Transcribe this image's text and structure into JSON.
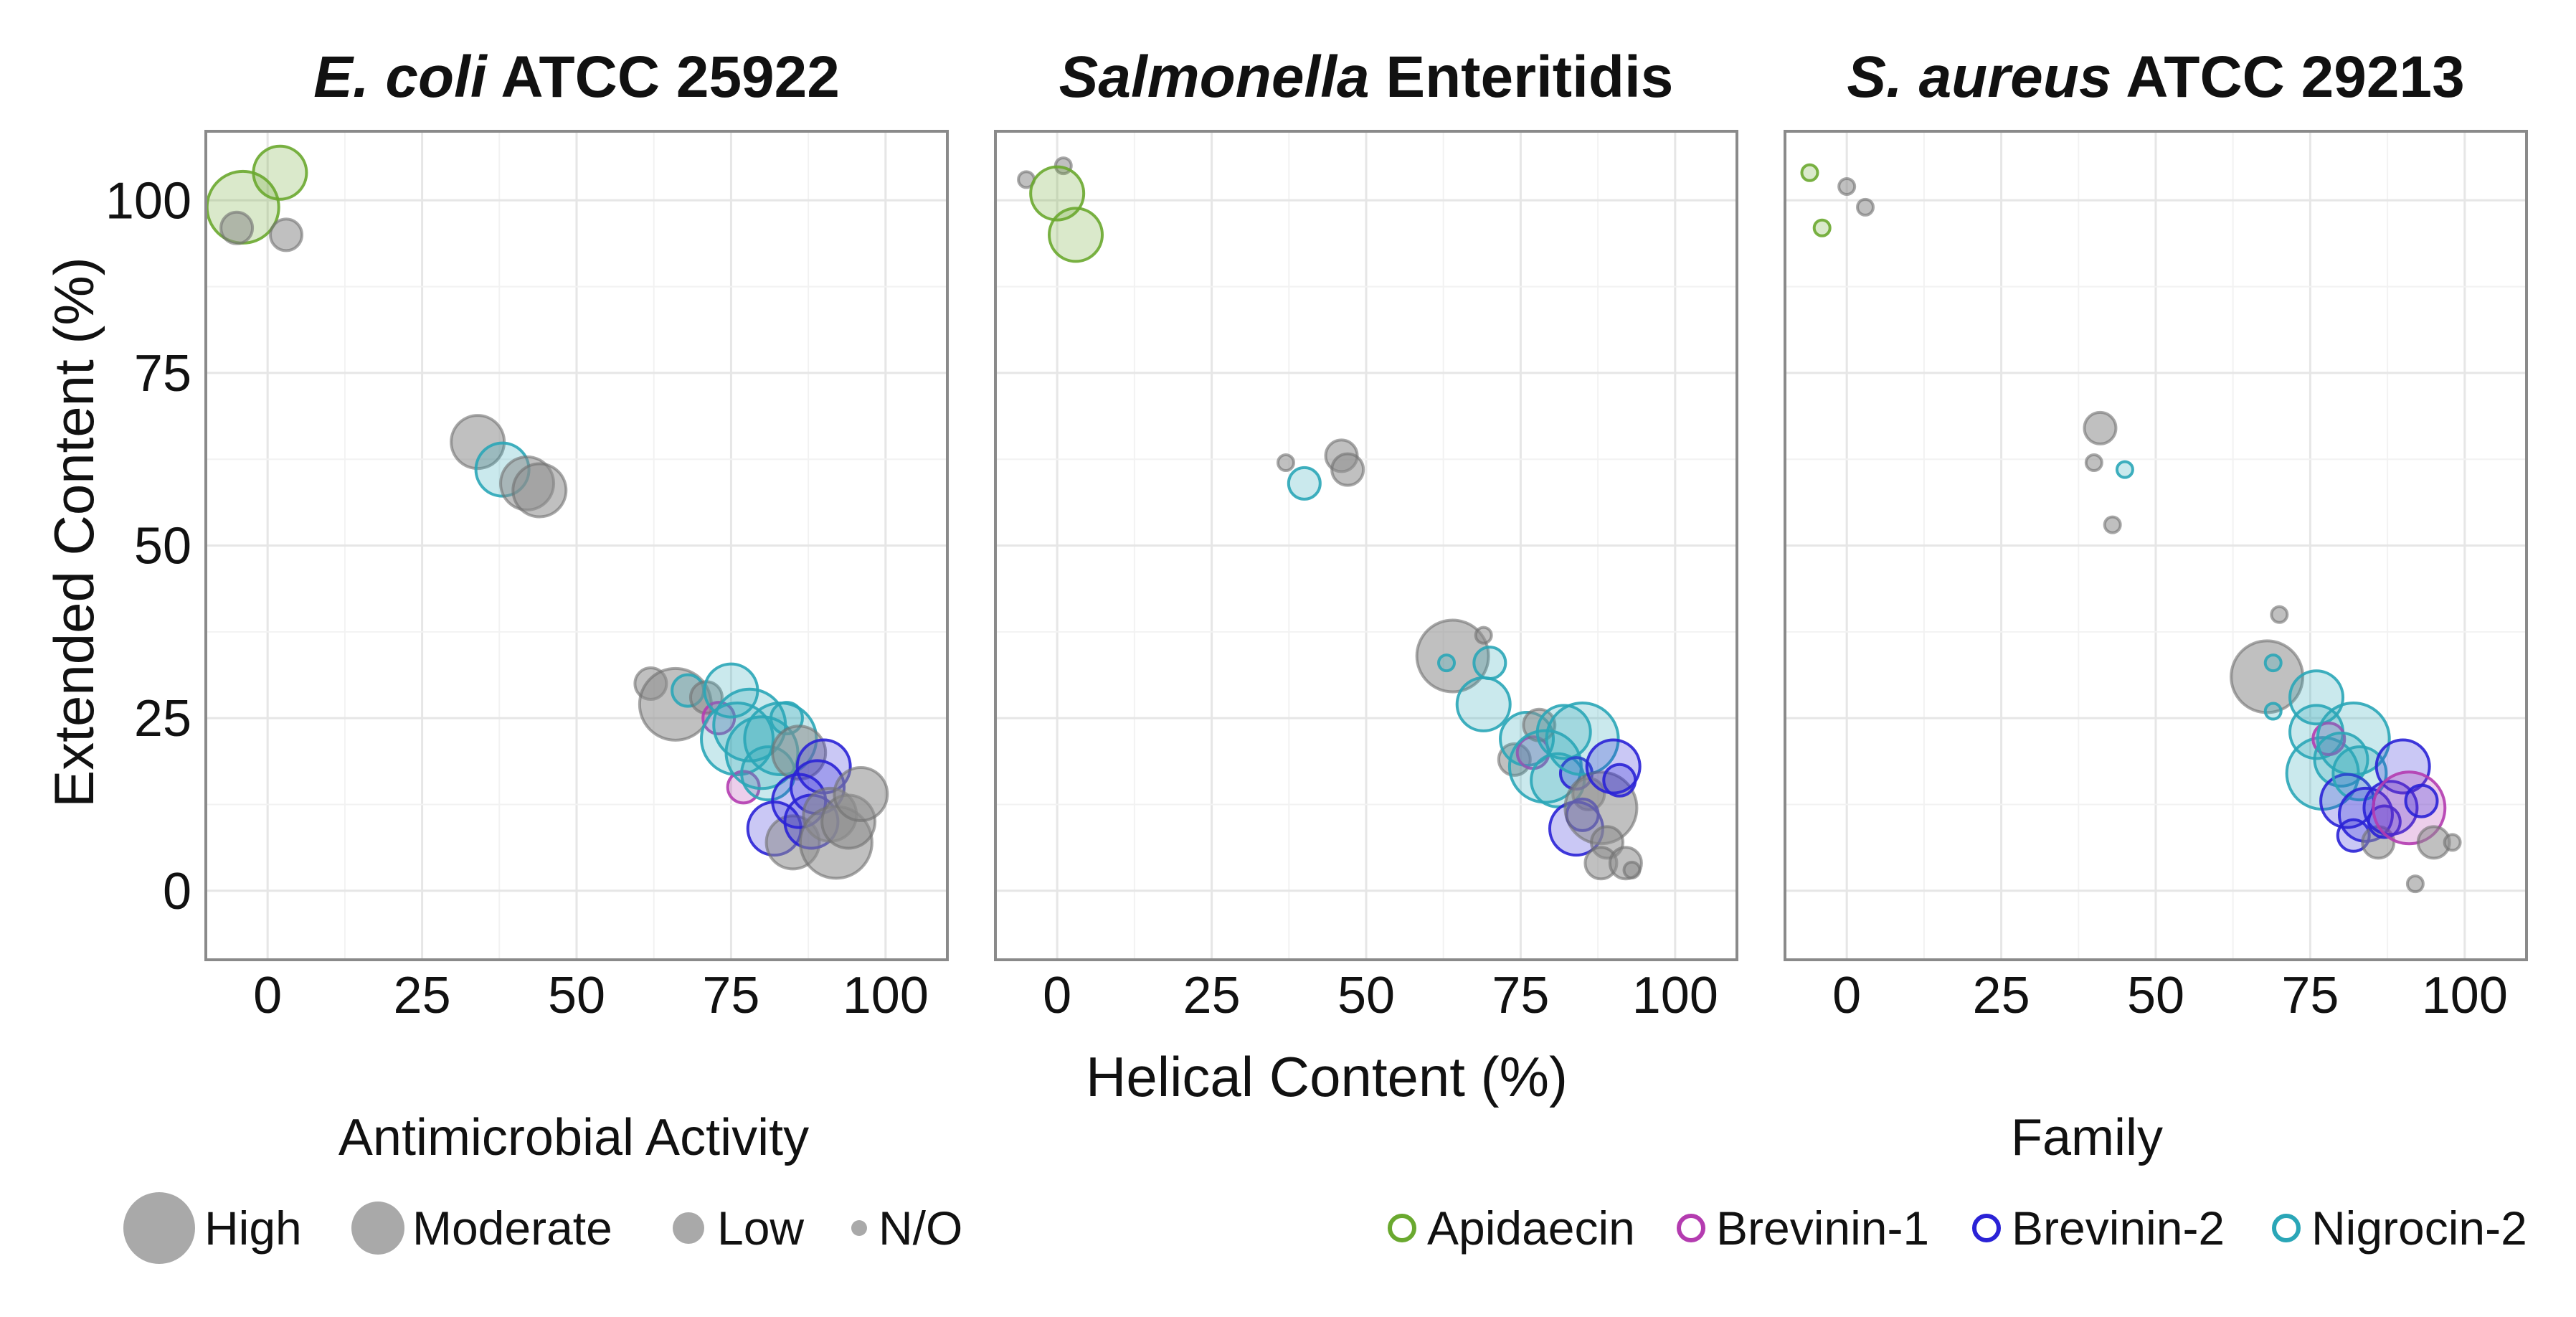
{
  "chart_data": {
    "type": "scatter",
    "xlabel": "Helical Content (%)",
    "ylabel": "Extended Content (%)",
    "xlim": [
      -10,
      110
    ],
    "ylim": [
      -10,
      110
    ],
    "x_ticks": [
      0,
      25,
      50,
      75,
      100
    ],
    "y_ticks": [
      0,
      25,
      50,
      75,
      100
    ],
    "grid": true,
    "panels": [
      {
        "title_italic": "E. coli",
        "title_rest": " ATCC 25922",
        "points": [
          {
            "x": -4,
            "y": 99,
            "family": "Apidaecin",
            "activity": "High"
          },
          {
            "x": 2,
            "y": 104,
            "family": "Apidaecin",
            "activity": "Moderate"
          },
          {
            "x": -5,
            "y": 96,
            "family": "N/A",
            "activity": "Low"
          },
          {
            "x": 3,
            "y": 95,
            "family": "N/A",
            "activity": "Low"
          },
          {
            "x": 34,
            "y": 65,
            "family": "N/A",
            "activity": "Moderate"
          },
          {
            "x": 38,
            "y": 61,
            "family": "Nigrocin-2",
            "activity": "Moderate"
          },
          {
            "x": 42,
            "y": 59,
            "family": "N/A",
            "activity": "Moderate"
          },
          {
            "x": 44,
            "y": 58,
            "family": "N/A",
            "activity": "Moderate"
          },
          {
            "x": 62,
            "y": 30,
            "family": "N/A",
            "activity": "Low"
          },
          {
            "x": 66,
            "y": 27,
            "family": "N/A",
            "activity": "High"
          },
          {
            "x": 68,
            "y": 29,
            "family": "Nigrocin-2",
            "activity": "Low"
          },
          {
            "x": 71,
            "y": 28,
            "family": "N/A",
            "activity": "Low"
          },
          {
            "x": 73,
            "y": 25,
            "family": "Brevinin-1",
            "activity": "Low"
          },
          {
            "x": 75,
            "y": 29,
            "family": "Nigrocin-2",
            "activity": "Moderate"
          },
          {
            "x": 76,
            "y": 22,
            "family": "Nigrocin-2",
            "activity": "High"
          },
          {
            "x": 77,
            "y": 15,
            "family": "Brevinin-1",
            "activity": "Low"
          },
          {
            "x": 78,
            "y": 24,
            "family": "Nigrocin-2",
            "activity": "High"
          },
          {
            "x": 80,
            "y": 20,
            "family": "Nigrocin-2",
            "activity": "High"
          },
          {
            "x": 81,
            "y": 17,
            "family": "Nigrocin-2",
            "activity": "Moderate"
          },
          {
            "x": 83,
            "y": 22,
            "family": "Nigrocin-2",
            "activity": "High"
          },
          {
            "x": 84,
            "y": 25,
            "family": "Nigrocin-2",
            "activity": "Low"
          },
          {
            "x": 86,
            "y": 20,
            "family": "N/A",
            "activity": "Moderate"
          },
          {
            "x": 82,
            "y": 9,
            "family": "Brevinin-2",
            "activity": "Moderate"
          },
          {
            "x": 85,
            "y": 7,
            "family": "N/A",
            "activity": "Moderate"
          },
          {
            "x": 86,
            "y": 13,
            "family": "Brevinin-2",
            "activity": "Moderate"
          },
          {
            "x": 88,
            "y": 10,
            "family": "Brevinin-2",
            "activity": "Moderate"
          },
          {
            "x": 89,
            "y": 15,
            "family": "Brevinin-2",
            "activity": "Moderate"
          },
          {
            "x": 90,
            "y": 18,
            "family": "Brevinin-2",
            "activity": "Moderate"
          },
          {
            "x": 91,
            "y": 11,
            "family": "N/A",
            "activity": "Moderate"
          },
          {
            "x": 92,
            "y": 7,
            "family": "N/A",
            "activity": "High"
          },
          {
            "x": 94,
            "y": 10,
            "family": "N/A",
            "activity": "Moderate"
          },
          {
            "x": 96,
            "y": 14,
            "family": "N/A",
            "activity": "Moderate"
          }
        ]
      },
      {
        "title_italic": "Salmonella",
        "title_rest": " Enteritidis",
        "points": [
          {
            "x": -5,
            "y": 103,
            "family": "N/A",
            "activity": "N/O"
          },
          {
            "x": 1,
            "y": 105,
            "family": "N/A",
            "activity": "N/O"
          },
          {
            "x": 0,
            "y": 101,
            "family": "Apidaecin",
            "activity": "Moderate"
          },
          {
            "x": 3,
            "y": 95,
            "family": "Apidaecin",
            "activity": "Moderate"
          },
          {
            "x": 37,
            "y": 62,
            "family": "N/A",
            "activity": "N/O"
          },
          {
            "x": 40,
            "y": 59,
            "family": "Nigrocin-2",
            "activity": "Low"
          },
          {
            "x": 46,
            "y": 63,
            "family": "N/A",
            "activity": "Low"
          },
          {
            "x": 47,
            "y": 61,
            "family": "N/A",
            "activity": "Low"
          },
          {
            "x": 64,
            "y": 34,
            "family": "N/A",
            "activity": "High"
          },
          {
            "x": 63,
            "y": 33,
            "family": "Nigrocin-2",
            "activity": "N/O"
          },
          {
            "x": 69,
            "y": 37,
            "family": "N/A",
            "activity": "N/O"
          },
          {
            "x": 70,
            "y": 33,
            "family": "Nigrocin-2",
            "activity": "Low"
          },
          {
            "x": 69,
            "y": 27,
            "family": "Nigrocin-2",
            "activity": "Moderate"
          },
          {
            "x": 74,
            "y": 19,
            "family": "N/A",
            "activity": "Low"
          },
          {
            "x": 76,
            "y": 22,
            "family": "Nigrocin-2",
            "activity": "Moderate"
          },
          {
            "x": 77,
            "y": 20,
            "family": "Brevinin-1",
            "activity": "Low"
          },
          {
            "x": 78,
            "y": 24,
            "family": "N/A",
            "activity": "Low"
          },
          {
            "x": 79,
            "y": 18,
            "family": "Nigrocin-2",
            "activity": "High"
          },
          {
            "x": 81,
            "y": 16,
            "family": "Nigrocin-2",
            "activity": "Moderate"
          },
          {
            "x": 82,
            "y": 23,
            "family": "Nigrocin-2",
            "activity": "Moderate"
          },
          {
            "x": 84,
            "y": 17,
            "family": "Brevinin-2",
            "activity": "Low"
          },
          {
            "x": 85,
            "y": 22,
            "family": "Nigrocin-2",
            "activity": "High"
          },
          {
            "x": 86,
            "y": 14,
            "family": "N/A",
            "activity": "Low"
          },
          {
            "x": 84,
            "y": 9,
            "family": "Brevinin-2",
            "activity": "Moderate"
          },
          {
            "x": 85,
            "y": 11,
            "family": "Brevinin-2",
            "activity": "Low"
          },
          {
            "x": 88,
            "y": 12,
            "family": "N/A",
            "activity": "High"
          },
          {
            "x": 89,
            "y": 7,
            "family": "N/A",
            "activity": "Low"
          },
          {
            "x": 90,
            "y": 18,
            "family": "Brevinin-2",
            "activity": "Moderate"
          },
          {
            "x": 91,
            "y": 16,
            "family": "Brevinin-2",
            "activity": "Low"
          },
          {
            "x": 88,
            "y": 4,
            "family": "N/A",
            "activity": "Low"
          },
          {
            "x": 92,
            "y": 4,
            "family": "N/A",
            "activity": "Low"
          },
          {
            "x": 93,
            "y": 3,
            "family": "N/A",
            "activity": "N/O"
          }
        ]
      },
      {
        "title_italic": "S. aureus",
        "title_rest": " ATCC 29213",
        "points": [
          {
            "x": -6,
            "y": 104,
            "family": "Apidaecin",
            "activity": "N/O"
          },
          {
            "x": -4,
            "y": 96,
            "family": "Apidaecin",
            "activity": "N/O"
          },
          {
            "x": 0,
            "y": 102,
            "family": "N/A",
            "activity": "N/O"
          },
          {
            "x": 3,
            "y": 99,
            "family": "N/A",
            "activity": "N/O"
          },
          {
            "x": 41,
            "y": 67,
            "family": "N/A",
            "activity": "Low"
          },
          {
            "x": 40,
            "y": 62,
            "family": "N/A",
            "activity": "N/O"
          },
          {
            "x": 45,
            "y": 61,
            "family": "Nigrocin-2",
            "activity": "N/O"
          },
          {
            "x": 43,
            "y": 53,
            "family": "N/A",
            "activity": "N/O"
          },
          {
            "x": 70,
            "y": 40,
            "family": "N/A",
            "activity": "N/O"
          },
          {
            "x": 68,
            "y": 31,
            "family": "N/A",
            "activity": "High"
          },
          {
            "x": 69,
            "y": 33,
            "family": "Nigrocin-2",
            "activity": "N/O"
          },
          {
            "x": 69,
            "y": 26,
            "family": "Nigrocin-2",
            "activity": "N/O"
          },
          {
            "x": 76,
            "y": 28,
            "family": "Nigrocin-2",
            "activity": "Moderate"
          },
          {
            "x": 76,
            "y": 23,
            "family": "Nigrocin-2",
            "activity": "Moderate"
          },
          {
            "x": 77,
            "y": 17,
            "family": "Nigrocin-2",
            "activity": "High"
          },
          {
            "x": 78,
            "y": 22,
            "family": "Brevinin-1",
            "activity": "Low"
          },
          {
            "x": 80,
            "y": 19,
            "family": "Nigrocin-2",
            "activity": "Moderate"
          },
          {
            "x": 82,
            "y": 22,
            "family": "Nigrocin-2",
            "activity": "High"
          },
          {
            "x": 81,
            "y": 13,
            "family": "Brevinin-2",
            "activity": "Moderate"
          },
          {
            "x": 83,
            "y": 17,
            "family": "Nigrocin-2",
            "activity": "Moderate"
          },
          {
            "x": 84,
            "y": 11,
            "family": "Brevinin-2",
            "activity": "Moderate"
          },
          {
            "x": 82,
            "y": 8,
            "family": "Brevinin-2",
            "activity": "Low"
          },
          {
            "x": 86,
            "y": 7,
            "family": "N/A",
            "activity": "Low"
          },
          {
            "x": 87,
            "y": 10,
            "family": "Brevinin-2",
            "activity": "Low"
          },
          {
            "x": 88,
            "y": 12,
            "family": "Brevinin-2",
            "activity": "Moderate"
          },
          {
            "x": 90,
            "y": 18,
            "family": "Brevinin-2",
            "activity": "Moderate"
          },
          {
            "x": 91,
            "y": 12,
            "family": "Brevinin-1",
            "activity": "High"
          },
          {
            "x": 93,
            "y": 13,
            "family": "Brevinin-2",
            "activity": "Low"
          },
          {
            "x": 95,
            "y": 7,
            "family": "N/A",
            "activity": "Low"
          },
          {
            "x": 98,
            "y": 7,
            "family": "N/A",
            "activity": "N/O"
          },
          {
            "x": 92,
            "y": 1,
            "family": "N/A",
            "activity": "N/O"
          }
        ]
      }
    ],
    "legend_activity": {
      "title": "Antimicrobial Activity",
      "items": [
        "High",
        "Moderate",
        "Low",
        "N/O"
      ]
    },
    "legend_family": {
      "title": "Family",
      "items": [
        "Apidaecin",
        "Brevinin-1",
        "Brevinin-2",
        "Nigrocin-2"
      ]
    },
    "colors": {
      "Apidaecin": "#6aa92f",
      "Brevinin-1": "#b43cb0",
      "Brevinin-2": "#2a22d6",
      "Nigrocin-2": "#2aa6b7",
      "N/A": "#707070",
      "N/A_fill": "#8c8c8c",
      "legend_size_fill": "#9a9a9a"
    }
  }
}
